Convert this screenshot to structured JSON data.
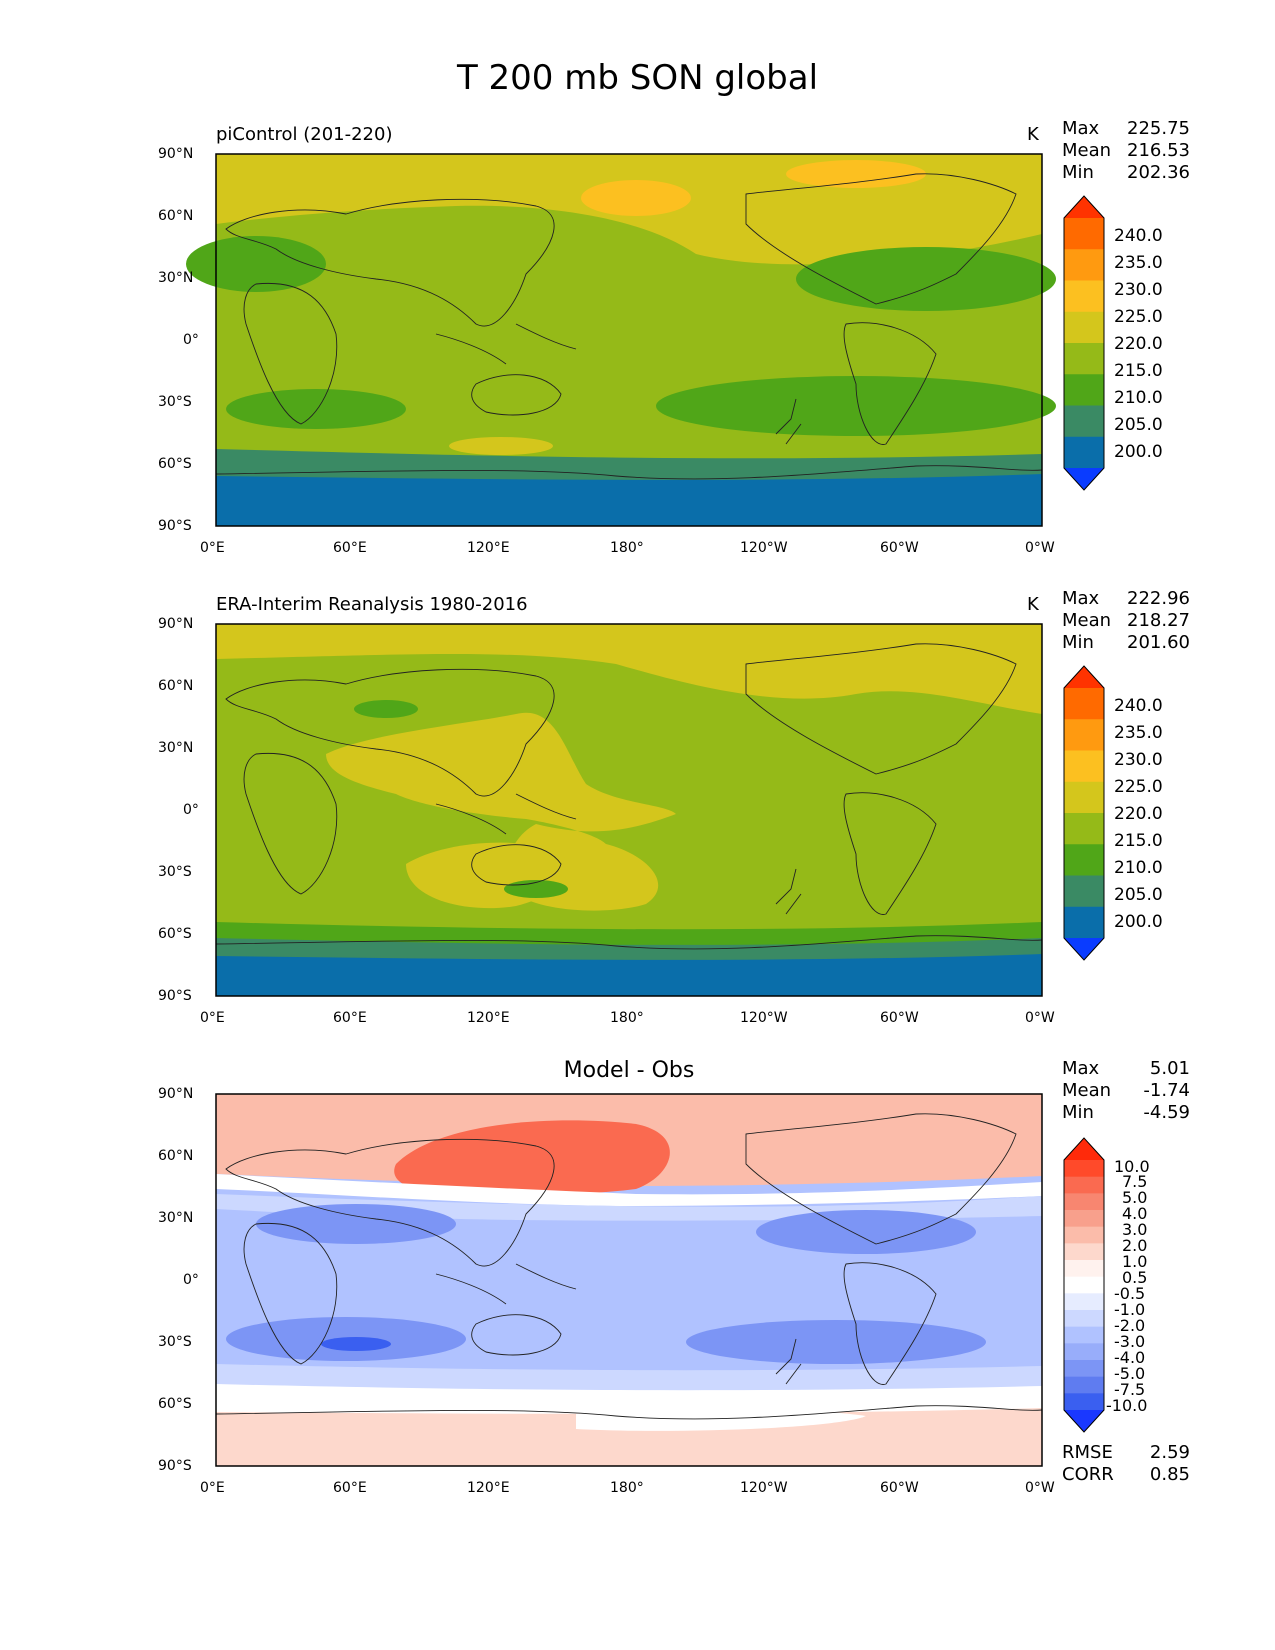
{
  "title": "T 200 mb SON global",
  "panels": [
    {
      "title": "piControl (201-220)",
      "units": "K",
      "stats": {
        "max_label": "Max",
        "max": "225.75",
        "mean_label": "Mean",
        "mean": "216.53",
        "min_label": "Min",
        "min": "202.36"
      },
      "colorbar": {
        "labels": [
          "240.0",
          "235.0",
          "230.0",
          "225.0",
          "220.0",
          "215.0",
          "210.0",
          "205.0",
          "200.0"
        ],
        "colors": [
          "#ff3300",
          "#ff6a00",
          "#ff9a10",
          "#fcc020",
          "#d4c61c",
          "#95ba18",
          "#50a618",
          "#3a8a64",
          "#0a6eaa",
          "#0a3cff"
        ]
      }
    },
    {
      "title": "ERA-Interim Reanalysis 1980-2016",
      "units": "K",
      "stats": {
        "max_label": "Max",
        "max": "222.96",
        "mean_label": "Mean",
        "mean": "218.27",
        "min_label": "Min",
        "min": "201.60"
      },
      "colorbar": {
        "labels": [
          "240.0",
          "235.0",
          "230.0",
          "225.0",
          "220.0",
          "215.0",
          "210.0",
          "205.0",
          "200.0"
        ],
        "colors": [
          "#ff3300",
          "#ff6a00",
          "#ff9a10",
          "#fcc020",
          "#d4c61c",
          "#95ba18",
          "#50a618",
          "#3a8a64",
          "#0a6eaa",
          "#0a3cff"
        ]
      }
    },
    {
      "title": "Model - Obs",
      "units": "",
      "stats": {
        "max_label": "Max",
        "max": "5.01",
        "mean_label": "Mean",
        "mean": "-1.74",
        "min_label": "Min",
        "min": "-4.59"
      },
      "colorbar": {
        "labels": [
          "10.0",
          "7.5",
          "5.0",
          "4.0",
          "3.0",
          "2.0",
          "1.0",
          "0.5",
          "-0.5",
          "-1.0",
          "-2.0",
          "-3.0",
          "-4.0",
          "-5.0",
          "-7.5",
          "-10.0"
        ],
        "colors": [
          "#ff2a0a",
          "#ff4a2a",
          "#fa6a50",
          "#f88670",
          "#f8a08c",
          "#fbbcaa",
          "#fdd8cc",
          "#fff2ee",
          "#ffffff",
          "#e6ecff",
          "#ccd8ff",
          "#b0c2ff",
          "#98adfa",
          "#7c95f5",
          "#5f7cf0",
          "#3a5ff0",
          "#1a38ff"
        ]
      },
      "rmse_label": "RMSE",
      "rmse": "2.59",
      "corr_label": "CORR",
      "corr": "0.85"
    }
  ],
  "axes": {
    "lat_ticks": [
      "90°N",
      "60°N",
      "30°N",
      "0°",
      "30°S",
      "60°S",
      "90°S"
    ],
    "lon_ticks": [
      "0°E",
      "60°E",
      "120°E",
      "180°",
      "120°W",
      "60°W",
      "0°W"
    ]
  }
}
